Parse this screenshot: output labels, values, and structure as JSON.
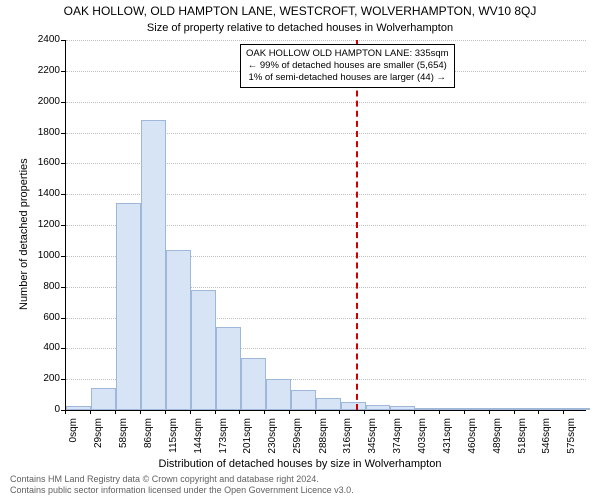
{
  "title_main": "OAK HOLLOW, OLD HAMPTON LANE, WESTCROFT, WOLVERHAMPTON, WV10 8QJ",
  "title_sub": "Size of property relative to detached houses in Wolverhampton",
  "y_axis_label": "Number of detached properties",
  "x_axis_label": "Distribution of detached houses by size in Wolverhampton",
  "footer_line1": "Contains HM Land Registry data © Crown copyright and database right 2024.",
  "footer_line2": "Contains public sector information licensed under the Open Government Licence v3.0.",
  "annotation": {
    "line1": "OAK HOLLOW OLD HAMPTON LANE: 335sqm",
    "line2": "← 99% of detached houses are smaller (5,654)",
    "line3": "1% of semi-detached houses are larger (44) →"
  },
  "chart": {
    "type": "histogram",
    "ylim": [
      0,
      2400
    ],
    "ytick_step": 200,
    "x_range_sqm": [
      0,
      600
    ],
    "bin_width_sqm": 28.8,
    "marker_value_sqm": 335,
    "values": [
      25,
      140,
      1340,
      1880,
      1040,
      780,
      540,
      340,
      200,
      130,
      80,
      50,
      30,
      25,
      12,
      12,
      8,
      2,
      15,
      2,
      2
    ],
    "x_tick_sqm": [
      0,
      29,
      58,
      86,
      115,
      144,
      173,
      201,
      230,
      259,
      288,
      316,
      345,
      374,
      403,
      431,
      460,
      489,
      518,
      546,
      575
    ],
    "bar_fill": "#d6e4f5",
    "bar_border": "#9fb8d9",
    "grid_color": "#bfbfbf",
    "marker_color": "#cc0000",
    "background_color": "#ffffff",
    "title_fontsize": 12,
    "subtitle_fontsize": 11,
    "axis_label_fontsize": 11,
    "tick_fontsize": 10,
    "annotation_fontsize": 9.5,
    "footer_fontsize": 9
  }
}
